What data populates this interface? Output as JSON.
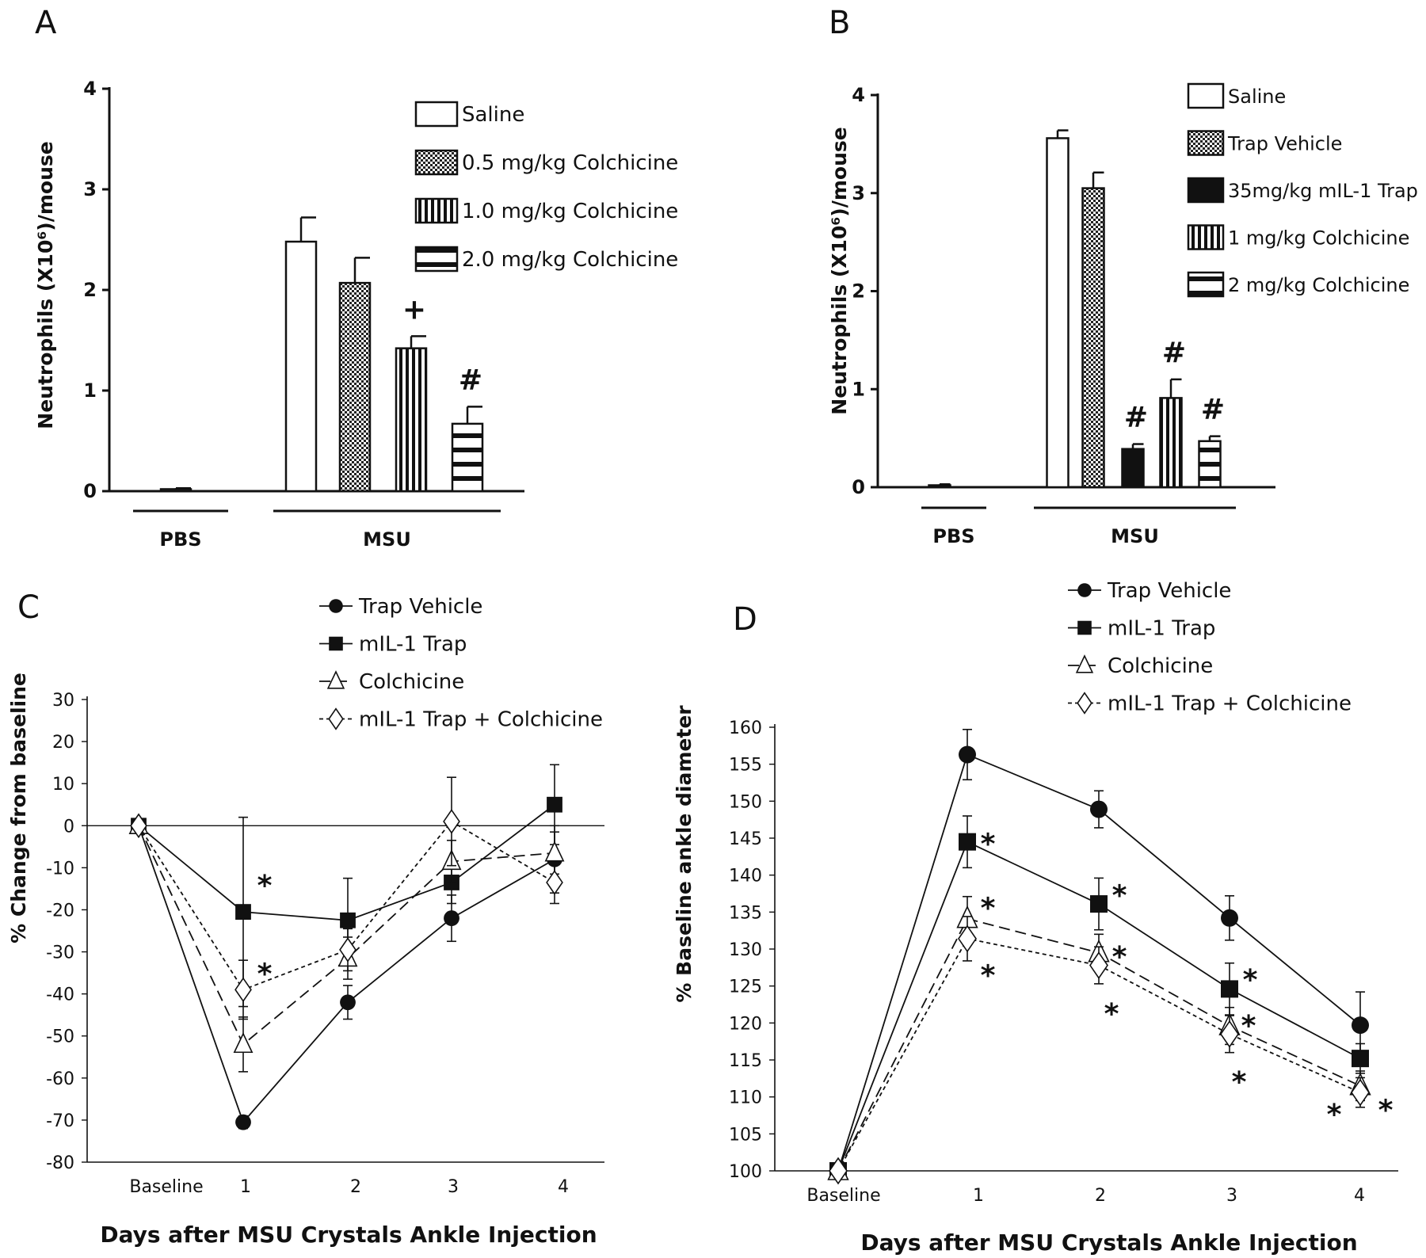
{
  "panels": {
    "A": {
      "letter": "A"
    },
    "B": {
      "letter": "B"
    },
    "C": {
      "letter": "C"
    },
    "D": {
      "letter": "D"
    }
  },
  "chart_data": [
    {
      "panel": "A",
      "type": "bar",
      "ylabel": "Neutrophils (X10⁶)/mouse",
      "ylim": [
        0,
        4
      ],
      "yticks": [
        "0",
        "1",
        "2",
        "3",
        "4"
      ],
      "groups": [
        "PBS",
        "MSU"
      ],
      "legend": [
        "Saline",
        "0.5 mg/kg Colchicine",
        "1.0 mg/kg Colchicine",
        "2.0 mg/kg Colchicine"
      ],
      "bars": [
        {
          "group": "PBS",
          "series": "Saline",
          "value": 0.02,
          "error": 0.01
        },
        {
          "group": "MSU",
          "series": "Saline",
          "value": 2.48,
          "error": 0.24
        },
        {
          "group": "MSU",
          "series": "0.5 mg/kg Colchicine",
          "value": 2.07,
          "error": 0.25
        },
        {
          "group": "MSU",
          "series": "1.0 mg/kg Colchicine",
          "value": 1.42,
          "error": 0.12,
          "annotation": "+"
        },
        {
          "group": "MSU",
          "series": "2.0 mg/kg Colchicine",
          "value": 0.67,
          "error": 0.17,
          "annotation": "#"
        }
      ]
    },
    {
      "panel": "B",
      "type": "bar",
      "ylabel": "Neutrophils (X10⁶)/mouse",
      "ylim": [
        0,
        4
      ],
      "yticks": [
        "0",
        "1",
        "2",
        "3",
        "4"
      ],
      "groups": [
        "PBS",
        "MSU"
      ],
      "legend": [
        "Saline",
        "Trap Vehicle",
        "35mg/kg mIL-1 Trap",
        "1 mg/kg Colchicine",
        "2 mg/kg Colchicine"
      ],
      "bars": [
        {
          "group": "PBS",
          "series": "Saline",
          "value": 0.02,
          "error": 0.01
        },
        {
          "group": "MSU",
          "series": "Saline",
          "value": 3.56,
          "error": 0.08
        },
        {
          "group": "MSU",
          "series": "Trap Vehicle",
          "value": 3.05,
          "error": 0.16
        },
        {
          "group": "MSU",
          "series": "35mg/kg mIL-1 Trap",
          "value": 0.39,
          "error": 0.05,
          "annotation": "#"
        },
        {
          "group": "MSU",
          "series": "1 mg/kg Colchicine",
          "value": 0.91,
          "error": 0.19,
          "annotation": "#"
        },
        {
          "group": "MSU",
          "series": "2 mg/kg Colchicine",
          "value": 0.47,
          "error": 0.05,
          "annotation": "#"
        }
      ]
    },
    {
      "panel": "C",
      "type": "line",
      "xlabel": "Days after MSU Crystals Ankle Injection",
      "ylabel": "% Change from baseline",
      "x": [
        "Baseline",
        "1",
        "2",
        "3",
        "4"
      ],
      "ylim": [
        -80,
        30
      ],
      "yticks": [
        "30",
        "20",
        "10",
        "0",
        "-10",
        "-20",
        "-30",
        "-40",
        "-50",
        "-60",
        "-70",
        "-80"
      ],
      "series": [
        {
          "name": "Trap Vehicle",
          "marker": "circle",
          "dash": "solid",
          "values": [
            0,
            -70.5,
            -42,
            -22,
            -8
          ],
          "errors": [
            0,
            1.5,
            4,
            5.5,
            8
          ]
        },
        {
          "name": "mIL-1 Trap",
          "marker": "square",
          "dash": "solid",
          "values": [
            0,
            -20.5,
            -22.5,
            -13.5,
            5
          ],
          "errors": [
            0,
            22.5,
            10,
            5,
            9.5
          ]
        },
        {
          "name": "Colchicine",
          "marker": "triangle",
          "dash": "long-dash",
          "values": [
            0,
            -52,
            -31.5,
            -8.5,
            -6.5
          ],
          "errors": [
            0,
            6.5,
            5,
            5,
            5
          ]
        },
        {
          "name": "mIL-1 Trap + Colchicine",
          "marker": "diamond",
          "dash": "short-dash",
          "values": [
            0,
            -39,
            -29.5,
            1,
            -13.5
          ],
          "errors": [
            0,
            7,
            5,
            10.5,
            5
          ]
        }
      ],
      "annotations": [
        {
          "text": "*",
          "x": "1",
          "y": -12
        },
        {
          "text": "*",
          "x": "1",
          "y": -33
        }
      ]
    },
    {
      "panel": "D",
      "type": "line",
      "xlabel": "Days after MSU Crystals Ankle Injection",
      "ylabel": "% Baseline ankle diameter",
      "x": [
        "Baseline",
        "1",
        "2",
        "3",
        "4"
      ],
      "ylim": [
        100,
        160
      ],
      "yticks": [
        "100",
        "105",
        "110",
        "115",
        "120",
        "125",
        "130",
        "135",
        "140",
        "145",
        "150",
        "155",
        "160"
      ],
      "series": [
        {
          "name": "Trap Vehicle",
          "marker": "circle",
          "dash": "solid",
          "values": [
            100,
            156.3,
            148.9,
            134.2,
            119.7
          ],
          "errors": [
            0,
            3.4,
            2.5,
            3,
            4.5
          ]
        },
        {
          "name": "mIL-1 Trap",
          "marker": "square",
          "dash": "solid",
          "values": [
            100,
            144.5,
            136.1,
            124.6,
            115.2
          ],
          "errors": [
            0,
            3.5,
            3.5,
            3.5,
            2
          ]
        },
        {
          "name": "Colchicine",
          "marker": "triangle",
          "dash": "long-dash",
          "values": [
            100,
            134.1,
            129.5,
            119.6,
            111.5
          ],
          "errors": [
            0,
            3,
            2.5,
            2.5,
            2
          ]
        },
        {
          "name": "mIL-1 Trap + Colchicine",
          "marker": "diamond",
          "dash": "short-dash",
          "values": [
            100,
            131.4,
            127.8,
            118.5,
            110.6
          ],
          "errors": [
            0,
            3,
            2.5,
            2.5,
            2
          ]
        }
      ],
      "annotations": [
        {
          "text": "*",
          "x": "1",
          "y": 145.5
        },
        {
          "text": "*",
          "x": "1",
          "y": 136.8
        },
        {
          "text": "*",
          "x": "1",
          "y": 127.7
        },
        {
          "text": "*",
          "x": "2",
          "y": 138.5
        },
        {
          "text": "*",
          "x": "2",
          "y": 130.2
        },
        {
          "text": "*",
          "x": "2",
          "y": 122.5
        },
        {
          "text": "*",
          "x": "3",
          "y": 127.1
        },
        {
          "text": "*",
          "x": "3",
          "y": 120.9
        },
        {
          "text": "*",
          "x": "3",
          "y": 113.3
        },
        {
          "text": "*",
          "x": "4",
          "y": 108.9
        },
        {
          "text": "*",
          "x": "4",
          "y": 109.5
        }
      ]
    }
  ]
}
